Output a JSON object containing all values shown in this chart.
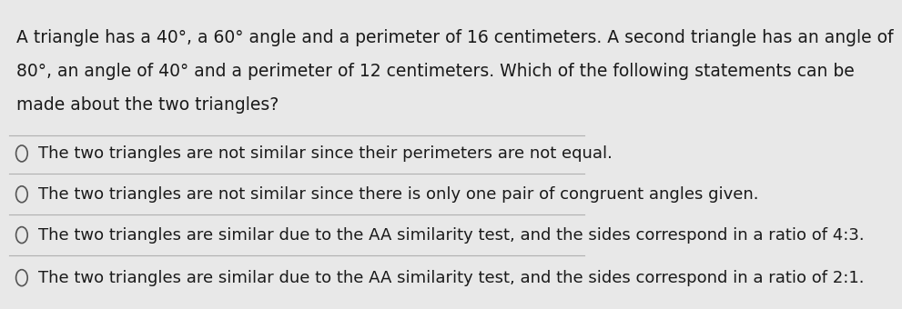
{
  "background_color": "#e8e8e8",
  "question_text_lines": [
    "A triangle has a 40°, a 60° angle and a perimeter of 16 centimeters. A second triangle has an angle of",
    "80°, an angle of 40° and a perimeter of 12 centimeters. Which of the following statements can be",
    "made about the two triangles?"
  ],
  "options": [
    "The two triangles are not similar since their perimeters are not equal.",
    "The two triangles are not similar since there is only one pair of congruent angles given.",
    "The two triangles are similar due to the AA similarity test, and the sides correspond in a ratio of 4:3.",
    "The two triangles are similar due to the AA similarity test, and the sides correspond in a ratio of 2:1."
  ],
  "text_color": "#1a1a1a",
  "line_color": "#b0b0b0",
  "circle_color": "#555555",
  "font_size_question": 13.5,
  "font_size_options": 13.0,
  "fig_width": 9.05,
  "fig_height": 3.23
}
